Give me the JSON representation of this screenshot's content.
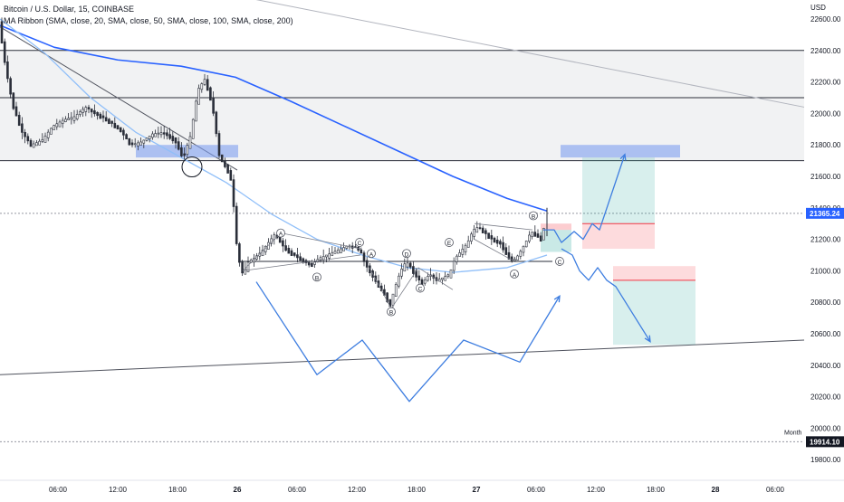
{
  "header": {
    "symbol": "Bitcoin / U.S. Dollar, 15, COINBASE",
    "indicator": "MA Ribbon (SMA, close, 20, SMA, close, 50, SMA, close, 100, SMA, close, 200)"
  },
  "price_axis": {
    "currency": "USD",
    "ticks": [
      "22600.00",
      "22400.00",
      "22200.00",
      "22000.00",
      "21800.00",
      "21600.00",
      "21400.00",
      "21200.00",
      "21000.00",
      "20800.00",
      "20600.00",
      "20400.00",
      "20200.00",
      "20000.00",
      "19800.00"
    ],
    "current_price": "21365.24",
    "month_label": "Month",
    "month_price": "19914.10"
  },
  "time_axis": {
    "ticks": [
      {
        "label": "06:00",
        "bold": false
      },
      {
        "label": "12:00",
        "bold": false
      },
      {
        "label": "18:00",
        "bold": false
      },
      {
        "label": "26",
        "bold": true
      },
      {
        "label": "06:00",
        "bold": false
      },
      {
        "label": "12:00",
        "bold": false
      },
      {
        "label": "18:00",
        "bold": false
      },
      {
        "label": "27",
        "bold": true
      },
      {
        "label": "06:00",
        "bold": false
      },
      {
        "label": "12:00",
        "bold": false
      },
      {
        "label": "18:00",
        "bold": false
      },
      {
        "label": "28",
        "bold": true
      },
      {
        "label": "06:00",
        "bold": false
      }
    ]
  },
  "wave_labels": [
    "A",
    "B",
    "C",
    "D",
    "E",
    "A",
    "B",
    "C",
    "A",
    "B",
    "C"
  ],
  "colors": {
    "up": "#26a69a",
    "down": "#131722",
    "candle": "#2a2e39",
    "ma200": "#2962ff",
    "ma100": "#90bff9",
    "projection": "#3d7de0",
    "zone_blue": "#7f9ff0",
    "gray_zone": "#e6e7ea",
    "target_green": "#26a69a",
    "stop_red": "#f23645",
    "price_tag": "#2962ff",
    "month_tag": "#131722"
  },
  "chart_data": {
    "type": "candlestick",
    "title": "Bitcoin / U.S. Dollar, 15, COINBASE",
    "ylim": [
      19760,
      22700
    ],
    "yticks": [
      22600,
      22400,
      22200,
      22000,
      21800,
      21600,
      21400,
      21200,
      21000,
      20800,
      20600,
      20400,
      20200,
      20000,
      19800
    ],
    "current_price": 21365.24,
    "month_level": 19914.1,
    "horizontal_levels": [
      22400,
      22100,
      21700,
      21060
    ],
    "price_path": [
      [
        0,
        22600
      ],
      [
        8,
        22280
      ],
      [
        16,
        22050
      ],
      [
        26,
        21880
      ],
      [
        36,
        21800
      ],
      [
        48,
        21830
      ],
      [
        60,
        21920
      ],
      [
        72,
        21960
      ],
      [
        84,
        21980
      ],
      [
        96,
        22040
      ],
      [
        108,
        22000
      ],
      [
        120,
        21960
      ],
      [
        134,
        21900
      ],
      [
        146,
        21800
      ],
      [
        158,
        21820
      ],
      [
        170,
        21870
      ],
      [
        182,
        21880
      ],
      [
        194,
        21840
      ],
      [
        204,
        21720
      ],
      [
        212,
        21860
      ],
      [
        220,
        22150
      ],
      [
        228,
        22220
      ],
      [
        236,
        22060
      ],
      [
        244,
        21720
      ],
      [
        252,
        21660
      ],
      [
        258,
        21550
      ],
      [
        262,
        21200
      ],
      [
        266,
        21060
      ],
      [
        270,
        20980
      ],
      [
        276,
        21060
      ],
      [
        282,
        21080
      ],
      [
        290,
        21120
      ],
      [
        298,
        21180
      ],
      [
        306,
        21240
      ],
      [
        314,
        21160
      ],
      [
        322,
        21120
      ],
      [
        330,
        21090
      ],
      [
        338,
        21060
      ],
      [
        346,
        21040
      ],
      [
        354,
        21080
      ],
      [
        362,
        21100
      ],
      [
        370,
        21120
      ],
      [
        378,
        21140
      ],
      [
        386,
        21160
      ],
      [
        394,
        21150
      ],
      [
        400,
        21120
      ],
      [
        404,
        21060
      ],
      [
        408,
        21020
      ],
      [
        414,
        20960
      ],
      [
        420,
        20900
      ],
      [
        426,
        20860
      ],
      [
        432,
        20780
      ],
      [
        438,
        20900
      ],
      [
        444,
        21000
      ],
      [
        450,
        21060
      ],
      [
        456,
        21020
      ],
      [
        462,
        20960
      ],
      [
        468,
        20920
      ],
      [
        476,
        20980
      ],
      [
        484,
        20940
      ],
      [
        492,
        20960
      ],
      [
        498,
        20980
      ],
      [
        504,
        21080
      ],
      [
        510,
        21120
      ],
      [
        518,
        21180
      ],
      [
        524,
        21260
      ],
      [
        530,
        21280
      ],
      [
        538,
        21240
      ],
      [
        546,
        21200
      ],
      [
        554,
        21180
      ],
      [
        562,
        21100
      ],
      [
        568,
        21060
      ],
      [
        574,
        21100
      ],
      [
        582,
        21180
      ],
      [
        588,
        21250
      ],
      [
        594,
        21230
      ],
      [
        600,
        21200
      ],
      [
        604,
        21340
      ]
    ],
    "ma200": [
      [
        0,
        22560
      ],
      [
        60,
        22420
      ],
      [
        130,
        22340
      ],
      [
        200,
        22300
      ],
      [
        260,
        22230
      ],
      [
        320,
        22080
      ],
      [
        380,
        21920
      ],
      [
        440,
        21760
      ],
      [
        500,
        21600
      ],
      [
        560,
        21460
      ],
      [
        604,
        21380
      ]
    ],
    "ma100": [
      [
        0,
        22600
      ],
      [
        50,
        22380
      ],
      [
        100,
        22100
      ],
      [
        150,
        21880
      ],
      [
        200,
        21720
      ],
      [
        250,
        21560
      ],
      [
        300,
        21360
      ],
      [
        350,
        21200
      ],
      [
        400,
        21100
      ],
      [
        450,
        21020
      ],
      [
        500,
        20990
      ],
      [
        560,
        21020
      ],
      [
        604,
        21100
      ]
    ],
    "zones": {
      "gray_range": [
        21700,
        22400
      ],
      "supply_top": [
        21720,
        21800
      ],
      "supply_left": [
        21720,
        21800
      ],
      "long_target": [
        21300,
        21720
      ],
      "long_stop": [
        21140,
        21300
      ],
      "short_stop": [
        20940,
        21030
      ],
      "short_target": [
        20530,
        20940
      ]
    },
    "projections": [
      [
        [
          283,
          20930
        ],
        [
          350,
          20340
        ],
        [
          400,
          20560
        ],
        [
          452,
          20170
        ],
        [
          512,
          20560
        ],
        [
          574,
          20420
        ],
        [
          618,
          20840
        ]
      ],
      [
        [
          600,
          21260
        ],
        [
          612,
          21260
        ],
        [
          620,
          21180
        ],
        [
          634,
          21250
        ],
        [
          644,
          21200
        ],
        [
          654,
          21300
        ],
        [
          662,
          21260
        ],
        [
          690,
          21740
        ]
      ],
      [
        [
          620,
          21140
        ],
        [
          632,
          21100
        ],
        [
          640,
          21000
        ],
        [
          650,
          20940
        ],
        [
          660,
          21020
        ],
        [
          670,
          20940
        ],
        [
          680,
          20900
        ],
        [
          718,
          20550
        ]
      ]
    ],
    "trend_lines": [
      [
        [
          0,
          20340
        ],
        [
          888,
          20560
        ]
      ],
      [
        [
          268,
          22740
        ],
        [
          888,
          22040
        ]
      ],
      [
        [
          0,
          22550
        ],
        [
          262,
          21640
        ]
      ]
    ]
  }
}
